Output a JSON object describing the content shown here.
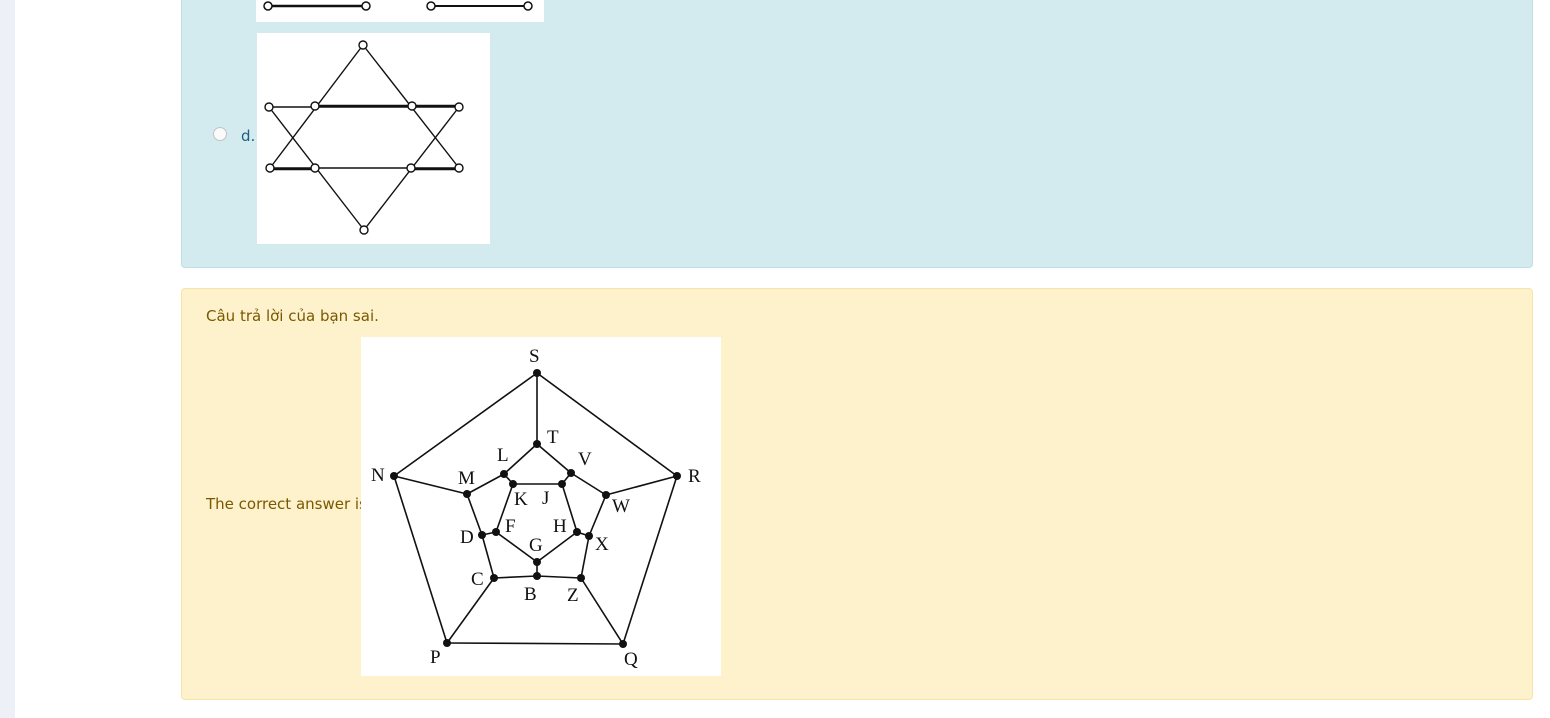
{
  "question": {
    "option_d_letter": "d."
  },
  "feedback": {
    "result_text": "Câu trả lời của bạn sai.",
    "correct_label": "The correct answer is:"
  },
  "graph_labels": {
    "S": "S",
    "T": "T",
    "V": "V",
    "L": "L",
    "N": "N",
    "R": "R",
    "M": "M",
    "K": "K",
    "J": "J",
    "W": "W",
    "D": "D",
    "F": "F",
    "H": "H",
    "G": "G",
    "X": "X",
    "C": "C",
    "B": "B",
    "Z": "Z",
    "P": "P",
    "Q": "Q"
  }
}
